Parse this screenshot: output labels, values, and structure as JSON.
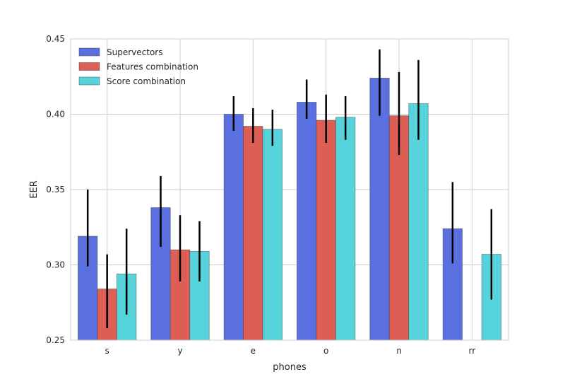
{
  "chart_data": {
    "type": "bar",
    "xlabel": "phones",
    "ylabel": "EER",
    "ylim": [
      0.25,
      0.45
    ],
    "yticks": [
      "0.25",
      "0.30",
      "0.35",
      "0.40",
      "0.45"
    ],
    "categories": [
      "s",
      "y",
      "e",
      "o",
      "n",
      "rr"
    ],
    "grid": true,
    "legend_position": "top-left",
    "series": [
      {
        "name": "Supervectors",
        "color": "#5a6fe0",
        "values": [
          0.319,
          0.338,
          0.4,
          0.408,
          0.424,
          0.324
        ],
        "err_low": [
          0.299,
          0.312,
          0.389,
          0.397,
          0.399,
          0.301
        ],
        "err_high": [
          0.35,
          0.359,
          0.412,
          0.423,
          0.443,
          0.355
        ]
      },
      {
        "name": "Features combination",
        "color": "#dc5e55",
        "values": [
          0.284,
          0.31,
          0.392,
          0.396,
          0.399,
          null
        ],
        "err_low": [
          0.258,
          0.289,
          0.381,
          0.381,
          0.373,
          null
        ],
        "err_high": [
          0.307,
          0.333,
          0.404,
          0.413,
          0.428,
          null
        ]
      },
      {
        "name": "Score combination",
        "color": "#56d3db",
        "values": [
          0.294,
          0.309,
          0.39,
          0.398,
          0.407,
          0.307
        ],
        "err_low": [
          0.267,
          0.289,
          0.379,
          0.383,
          0.383,
          0.277
        ],
        "err_high": [
          0.324,
          0.329,
          0.403,
          0.412,
          0.436,
          0.337
        ]
      }
    ]
  }
}
